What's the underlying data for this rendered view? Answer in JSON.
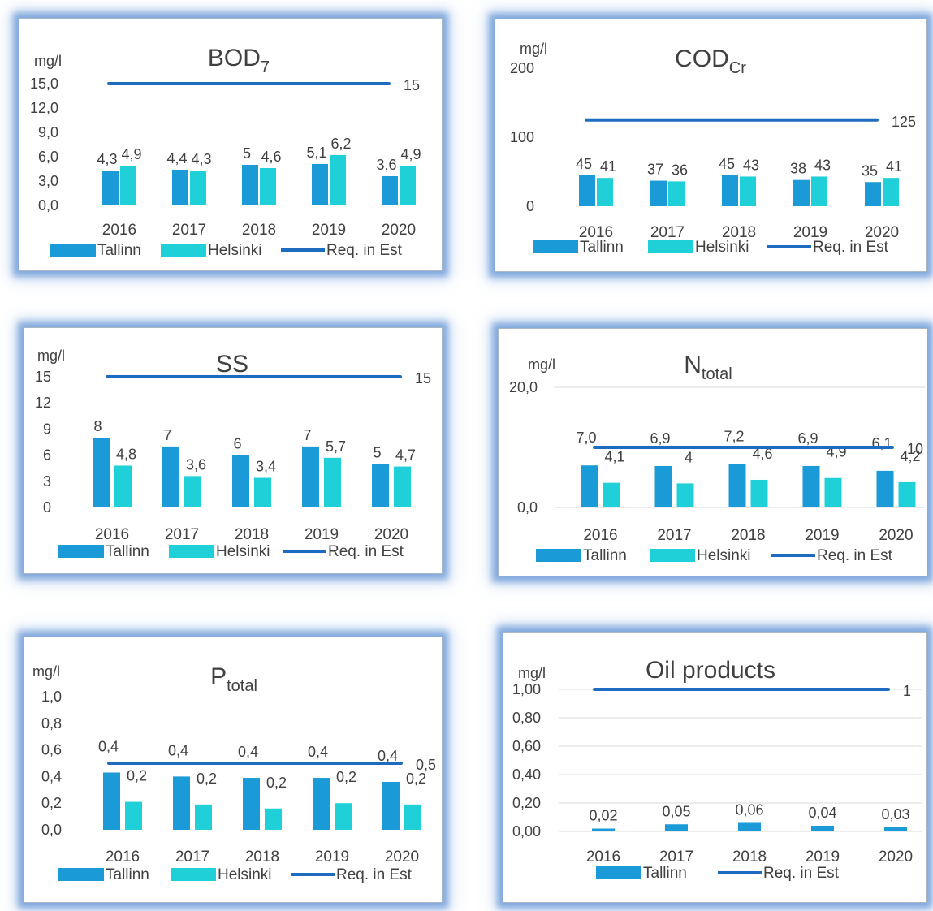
{
  "colors": {
    "tallinn": "#1a9ad6",
    "helsinki": "#1fd0d8",
    "requirement": "#1e6cbf"
  },
  "chart_data": [
    {
      "type": "bar",
      "title": "BOD",
      "title_sub": "7",
      "unit": "mg/l",
      "categories": [
        "2016",
        "2017",
        "2018",
        "2019",
        "2020"
      ],
      "ylim": [
        0,
        15
      ],
      "yticks": [
        "0,0",
        "3,0",
        "6,0",
        "9,0",
        "12,0",
        "15,0"
      ],
      "ytick_values": [
        0,
        3,
        6,
        9,
        12,
        15
      ],
      "gridlines": false,
      "legend": "bottom",
      "series": [
        {
          "name": "Tallinn",
          "kind": "bar",
          "values": [
            4.3,
            4.4,
            5,
            5.1,
            3.6
          ],
          "labels": [
            "4,3",
            "4,4",
            "5",
            "5,1",
            "3,6"
          ]
        },
        {
          "name": "Helsinki",
          "kind": "bar",
          "values": [
            4.9,
            4.3,
            4.6,
            6.2,
            4.9
          ],
          "labels": [
            "4,9",
            "4,3",
            "4,6",
            "6,2",
            "4,9"
          ]
        },
        {
          "name": "Req. in Est",
          "kind": "line",
          "value": 15,
          "label": "15"
        }
      ]
    },
    {
      "type": "bar",
      "title": "COD",
      "title_sub": "Cr",
      "unit": "mg/l",
      "categories": [
        "2016",
        "2017",
        "2018",
        "2019",
        "2020"
      ],
      "ylim": [
        0,
        200
      ],
      "yticks": [
        "0",
        "100",
        "200"
      ],
      "ytick_values": [
        0,
        100,
        200
      ],
      "gridlines": false,
      "legend": "bottom",
      "series": [
        {
          "name": "Tallinn",
          "kind": "bar",
          "values": [
            45,
            37,
            45,
            38,
            35
          ],
          "labels": [
            "45",
            "37",
            "45",
            "38",
            "35"
          ]
        },
        {
          "name": "Helsinki",
          "kind": "bar",
          "values": [
            41,
            36,
            43,
            43,
            41
          ],
          "labels": [
            "41",
            "36",
            "43",
            "43",
            "41"
          ]
        },
        {
          "name": "Req. in Est",
          "kind": "line",
          "value": 125,
          "label": "125"
        }
      ]
    },
    {
      "type": "bar",
      "title": "SS",
      "title_sub": "",
      "unit": "mg/l",
      "categories": [
        "2016",
        "2017",
        "2018",
        "2019",
        "2020"
      ],
      "ylim": [
        0,
        15
      ],
      "yticks": [
        "0",
        "3",
        "6",
        "9",
        "12",
        "15"
      ],
      "ytick_values": [
        0,
        3,
        6,
        9,
        12,
        15
      ],
      "gridlines": false,
      "legend": "bottom",
      "series": [
        {
          "name": "Tallinn",
          "kind": "bar",
          "values": [
            8,
            7,
            6,
            7,
            5
          ],
          "labels": [
            "8",
            "7",
            "6",
            "7",
            "5"
          ]
        },
        {
          "name": "Helsinki",
          "kind": "bar",
          "values": [
            4.8,
            3.6,
            3.4,
            5.7,
            4.7
          ],
          "labels": [
            "4,8",
            "3,6",
            "3,4",
            "5,7",
            "4,7"
          ]
        },
        {
          "name": "Req. in Est",
          "kind": "line",
          "value": 15,
          "label": "15"
        }
      ]
    },
    {
      "type": "bar",
      "title": "N",
      "title_sub": "total",
      "unit": "mg/l",
      "categories": [
        "2016",
        "2017",
        "2018",
        "2019",
        "2020"
      ],
      "ylim": [
        0,
        20
      ],
      "yticks": [
        "0,0",
        "20,0"
      ],
      "ytick_values": [
        0,
        20
      ],
      "gridlines": true,
      "legend": "bottom",
      "series": [
        {
          "name": "Tallinn",
          "kind": "bar",
          "values": [
            7.0,
            6.9,
            7.2,
            6.9,
            6.1
          ],
          "labels": [
            "7,0",
            "6,9",
            "7,2",
            "6,9",
            "6,1"
          ]
        },
        {
          "name": "Helsinki",
          "kind": "bar",
          "values": [
            4.1,
            4,
            4.6,
            4.9,
            4.2
          ],
          "labels": [
            "4,1",
            "4",
            "4,6",
            "4,9",
            "4,2"
          ]
        },
        {
          "name": "Req. in Est",
          "kind": "line",
          "value": 10,
          "label": "10"
        }
      ]
    },
    {
      "type": "bar",
      "title": "P",
      "title_sub": "total",
      "unit": "mg/l",
      "categories": [
        "2016",
        "2017",
        "2018",
        "2019",
        "2020"
      ],
      "ylim": [
        0,
        1
      ],
      "yticks": [
        "0,0",
        "0,2",
        "0,4",
        "0,6",
        "0,8",
        "1,0"
      ],
      "ytick_values": [
        0,
        0.2,
        0.4,
        0.6,
        0.8,
        1.0
      ],
      "gridlines": false,
      "legend": "bottom",
      "series": [
        {
          "name": "Tallinn",
          "kind": "bar",
          "values": [
            0.43,
            0.4,
            0.39,
            0.39,
            0.36
          ],
          "labels": [
            "0,4",
            "0,4",
            "0,4",
            "0,4",
            "0,4"
          ]
        },
        {
          "name": "Helsinki",
          "kind": "bar",
          "values": [
            0.21,
            0.19,
            0.16,
            0.2,
            0.19
          ],
          "labels": [
            "0,2",
            "0,2",
            "0,2",
            "0,2",
            "0,2"
          ]
        },
        {
          "name": "Req. in Est",
          "kind": "line",
          "value": 0.5,
          "label": "0,5"
        }
      ]
    },
    {
      "type": "bar",
      "title": "Oil products",
      "title_sub": "",
      "unit": "mg/l",
      "categories": [
        "2016",
        "2017",
        "2018",
        "2019",
        "2020"
      ],
      "ylim": [
        0,
        1
      ],
      "yticks": [
        "0,00",
        "0,20",
        "0,40",
        "0,60",
        "0,80",
        "1,00"
      ],
      "ytick_values": [
        0,
        0.2,
        0.4,
        0.6,
        0.8,
        1.0
      ],
      "gridlines": true,
      "legend": "bottom",
      "series": [
        {
          "name": "Tallinn",
          "kind": "bar",
          "values": [
            0.02,
            0.05,
            0.06,
            0.04,
            0.03
          ],
          "labels": [
            "0,02",
            "0,05",
            "0,06",
            "0,04",
            "0,03"
          ]
        },
        {
          "name": "Req. in Est",
          "kind": "line",
          "value": 1,
          "label": "1"
        }
      ]
    }
  ]
}
